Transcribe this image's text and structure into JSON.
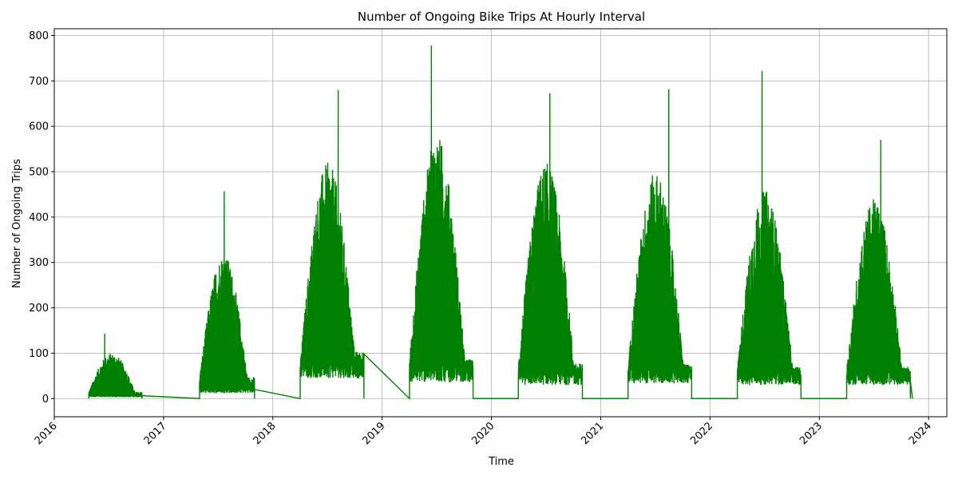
{
  "chart_data": {
    "type": "line",
    "title": "Number of Ongoing Bike Trips At Hourly Interval",
    "xlabel": "Time",
    "ylabel": "Number of Ongoing Trips",
    "grid": true,
    "line_color": "#008000",
    "x_ticks": [
      "2016",
      "2017",
      "2018",
      "2019",
      "2020",
      "2021",
      "2022",
      "2023",
      "2024"
    ],
    "y_ticks": [
      0,
      100,
      200,
      300,
      400,
      500,
      600,
      700,
      800
    ],
    "xlim": [
      "2016-01",
      "2024-03"
    ],
    "ylim": [
      -40,
      815
    ],
    "series": [
      {
        "values_description": "hourly counts; summarized by season envelope",
        "seasons": [
          {
            "start": "2016-04-25",
            "end": "2016-10-20",
            "baseline": 5,
            "typical_peak": 100,
            "max": 143
          },
          {
            "start": "2017-04-30",
            "end": "2017-10-31",
            "baseline": 20,
            "typical_peak": 320,
            "max": 457
          },
          {
            "start": "2018-04-01",
            "end": "2018-11-01",
            "baseline": 75,
            "typical_peak": 520,
            "max": 680
          },
          {
            "start": "2019-04-01",
            "end": "2019-10-31",
            "baseline": 60,
            "typical_peak": 580,
            "max": 778
          },
          {
            "start": "2020-03-30",
            "end": "2020-10-31",
            "baseline": 50,
            "typical_peak": 520,
            "max": 673
          },
          {
            "start": "2021-04-01",
            "end": "2021-10-31",
            "baseline": 55,
            "typical_peak": 500,
            "max": 682
          },
          {
            "start": "2022-04-01",
            "end": "2022-10-31",
            "baseline": 50,
            "typical_peak": 460,
            "max": 722
          },
          {
            "start": "2023-04-01",
            "end": "2023-11-01",
            "baseline": 50,
            "typical_peak": 440,
            "max": 570
          }
        ]
      }
    ]
  }
}
